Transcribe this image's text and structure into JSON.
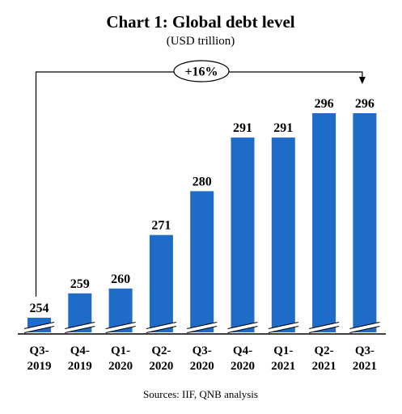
{
  "chart_data": {
    "type": "bar",
    "title": "Chart 1: Global debt level",
    "subtitle": "(USD trillion)",
    "categories": [
      "Q3-2019",
      "Q4-2019",
      "Q1-2020",
      "Q2-2020",
      "Q3-2020",
      "Q4-2020",
      "Q1-2021",
      "Q2-2021",
      "Q3-2021"
    ],
    "tick_labels": [
      [
        "Q3-",
        "2019"
      ],
      [
        "Q4-",
        "2019"
      ],
      [
        "Q1-",
        "2020"
      ],
      [
        "Q2-",
        "2020"
      ],
      [
        "Q3-",
        "2020"
      ],
      [
        "Q4-",
        "2020"
      ],
      [
        "Q1-",
        "2021"
      ],
      [
        "Q2-",
        "2021"
      ],
      [
        "Q3-",
        "2021"
      ]
    ],
    "values": [
      254,
      259,
      260,
      271,
      280,
      291,
      291,
      296,
      296
    ],
    "data_labels": [
      "254",
      "259",
      "260",
      "271",
      "280",
      "291",
      "291",
      "296",
      "296"
    ],
    "ylim": [
      251,
      298
    ],
    "axis_break": true,
    "grid": false,
    "legend": "none",
    "bar_color": "#1f6cc8",
    "annotation": {
      "text": "+16%",
      "from": "Q3-2019",
      "to": "Q3-2021"
    },
    "source": "Sources: IIF, QNB analysis"
  }
}
